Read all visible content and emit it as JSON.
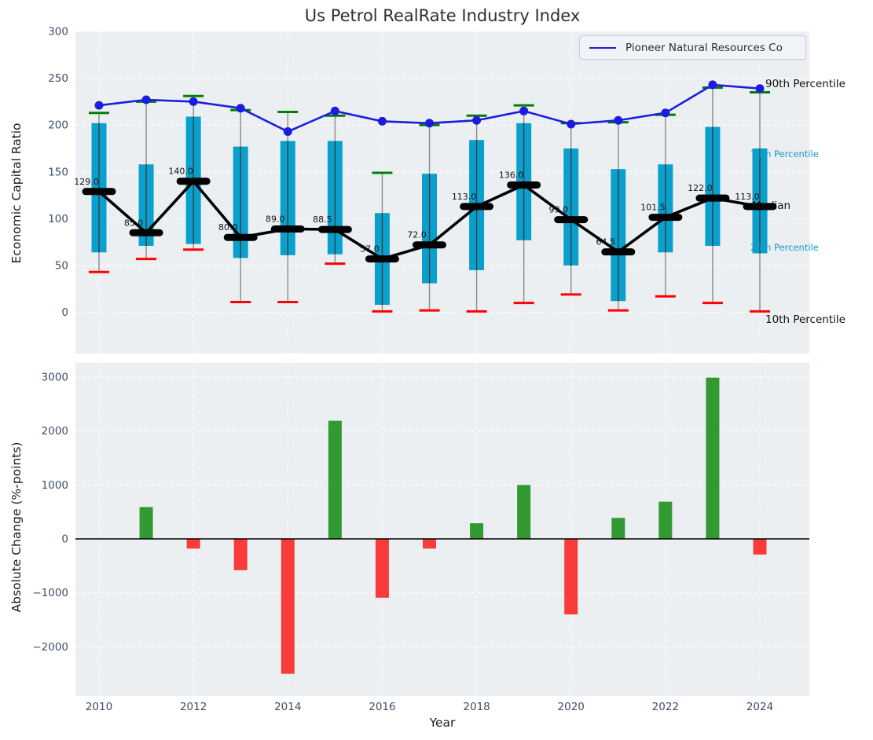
{
  "title": "Us Petrol RealRate Industry Index",
  "legend": {
    "label": "Pioneer Natural Resources Co"
  },
  "annotations": {
    "p90": "90th Percentile",
    "p75": "75th Percentile",
    "median": "Median",
    "p25": "25th Percentile",
    "p10": "10th Percentile"
  },
  "colors": {
    "plot_bg": "#eceff1",
    "grid": "#ffffff",
    "tick_label": "#3f4d63",
    "box": "#0aa0cd",
    "whisker": "#8a8a8a",
    "whisker_core": "#3c3c3c",
    "cap_high": "#008000",
    "cap_low": "#ff0000",
    "median": "#000000",
    "line": "#1c1ce0",
    "bar_positive": "#339933",
    "bar_negative": "#f93b3b",
    "zero_line": "#000000"
  },
  "chart_data": [
    {
      "type": "boxplot-line",
      "title": "Us Petrol RealRate Industry Index",
      "ylabel": "Economic Capital Ratio",
      "series_name": "Pioneer Natural Resources Co",
      "legend_position": "upper right",
      "grid": true,
      "ylim": [
        -44,
        300
      ],
      "yticks": [
        300,
        250,
        200,
        150,
        100,
        50,
        0
      ],
      "years": [
        2010,
        2011,
        2012,
        2013,
        2014,
        2015,
        2016,
        2017,
        2018,
        2019,
        2020,
        2021,
        2022,
        2023,
        2024
      ],
      "p10": [
        43,
        57,
        67,
        11,
        11,
        52,
        1,
        2,
        1,
        10,
        19,
        2,
        17,
        10,
        1
      ],
      "q1": [
        64,
        71,
        73,
        58,
        61,
        62,
        8,
        31,
        45,
        77,
        50,
        12,
        64,
        71,
        63
      ],
      "median": [
        129.0,
        85.0,
        140.0,
        80.0,
        89.0,
        88.5,
        57.0,
        72.0,
        113.0,
        136.0,
        99.0,
        64.5,
        101.5,
        122.0,
        113.0
      ],
      "q3": [
        202,
        158,
        209,
        177,
        183,
        183,
        106,
        148,
        184,
        202,
        175,
        153,
        158,
        198,
        175
      ],
      "p90": [
        213,
        225,
        231,
        216,
        214,
        210,
        149,
        200,
        210,
        221,
        202,
        203,
        211,
        240,
        235
      ],
      "pioneer": [
        221,
        227,
        225,
        218,
        193,
        215,
        204,
        202,
        205,
        215,
        201,
        205,
        213,
        243,
        239
      ]
    },
    {
      "type": "bar",
      "ylabel": "Absolute Change (%-points)",
      "xlabel": "Year",
      "grid": true,
      "ylim": [
        -2912,
        3262
      ],
      "yticks": [
        3000,
        2000,
        1000,
        0,
        -1000,
        -2000
      ],
      "ytick_labels": [
        "3000",
        "2000",
        "1000",
        "0",
        "−1000",
        "−2000"
      ],
      "xtick_labels": [
        "2010",
        "2012",
        "2014",
        "2016",
        "2018",
        "2020",
        "2022",
        "2024"
      ],
      "years": [
        2010,
        2011,
        2012,
        2013,
        2014,
        2015,
        2016,
        2017,
        2018,
        2019,
        2020,
        2021,
        2022,
        2023,
        2024
      ],
      "values": [
        0,
        590,
        -180,
        -580,
        -2500,
        2190,
        -1090,
        -180,
        290,
        1000,
        -1400,
        390,
        690,
        2990,
        -290
      ]
    }
  ]
}
